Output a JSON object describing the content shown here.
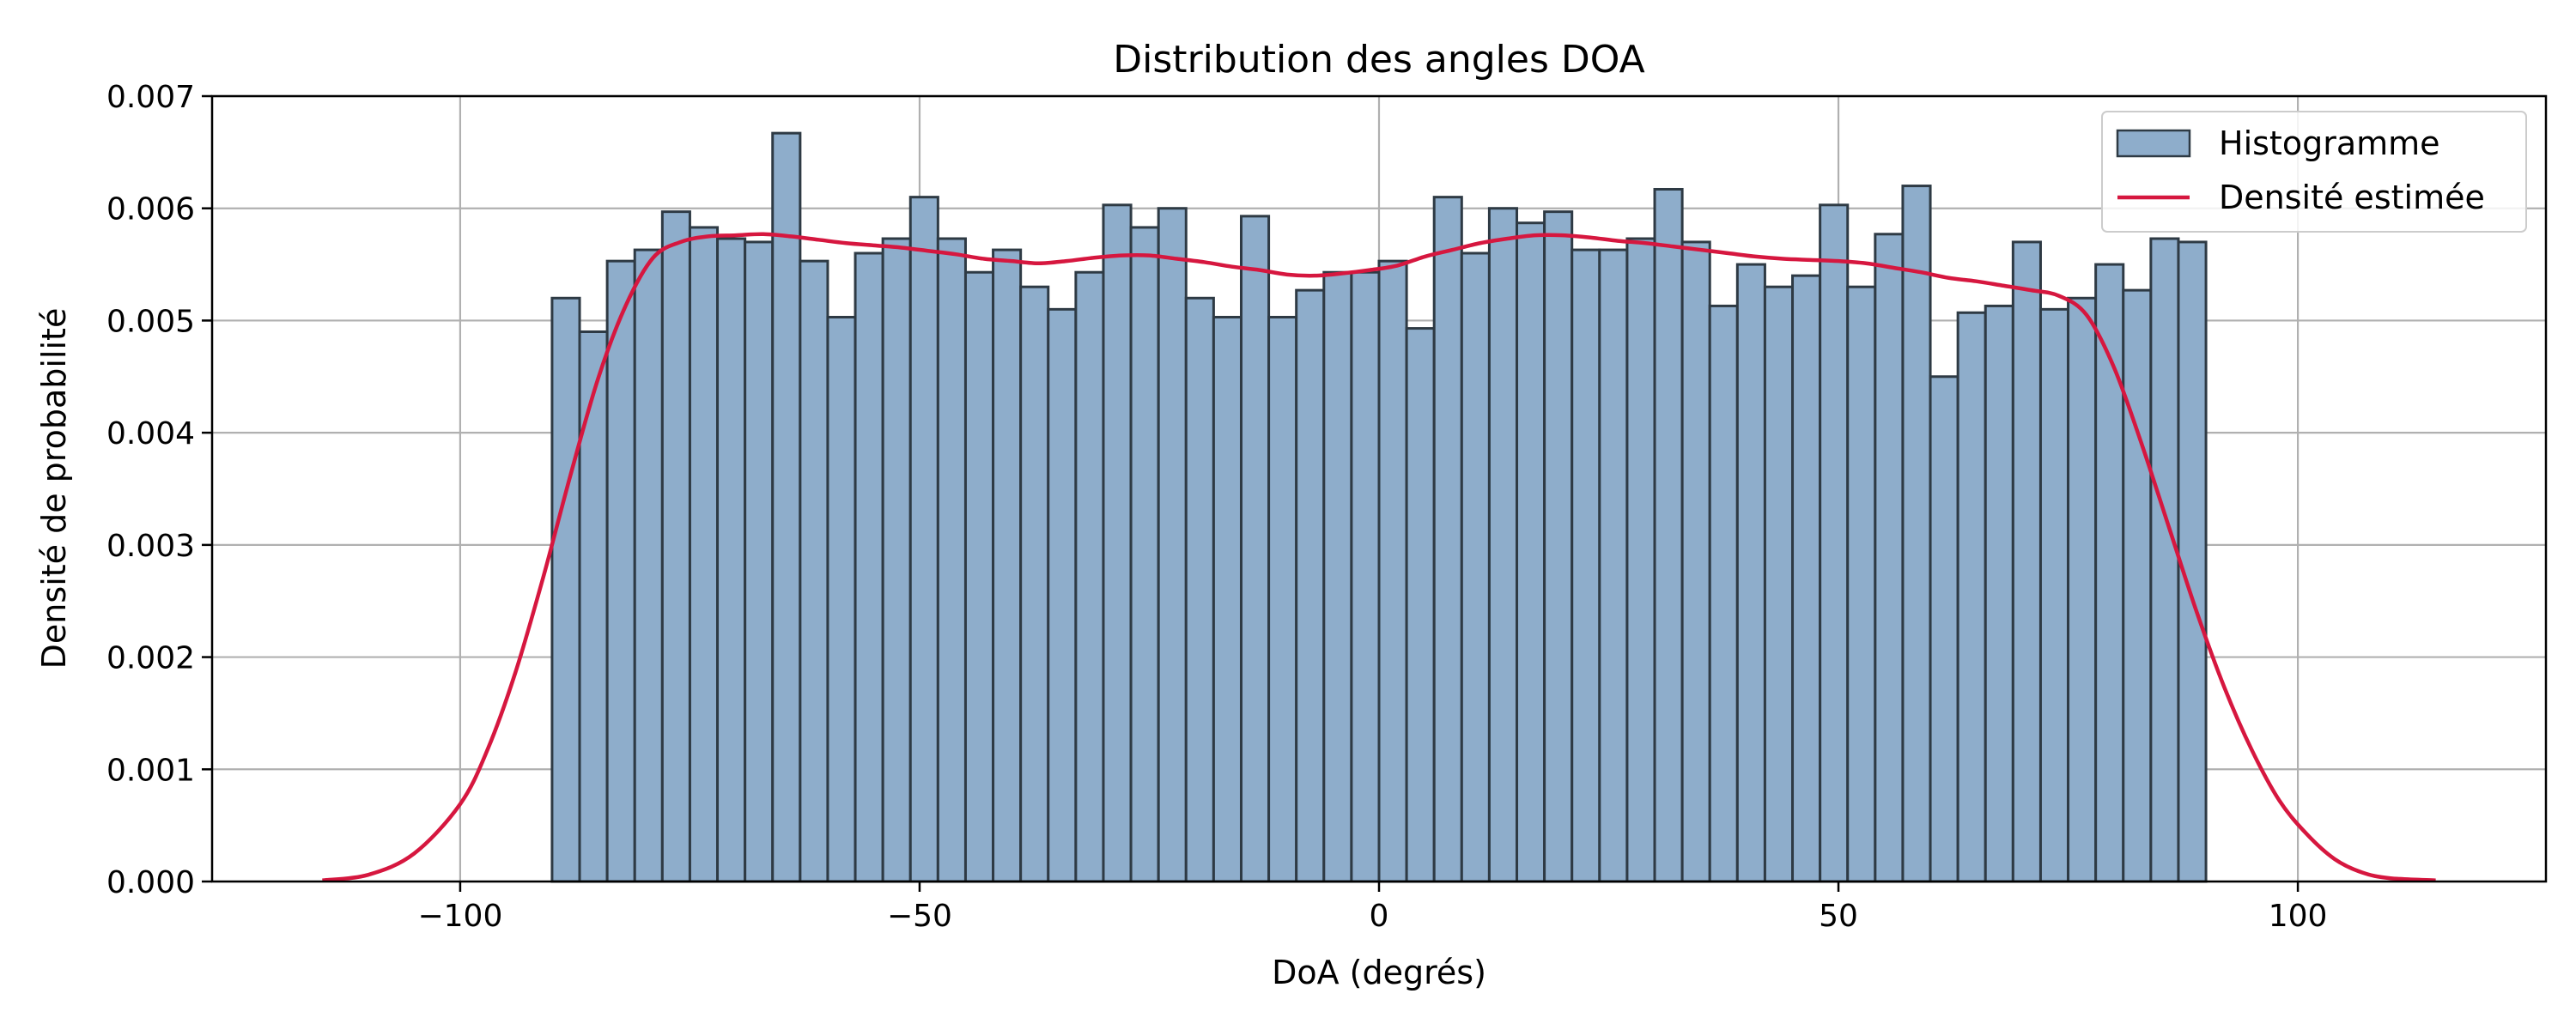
{
  "chart_data": {
    "type": "bar",
    "title": "Distribution des angles DOA",
    "xlabel": "DoA (degrés)",
    "ylabel": "Densité de probabilité",
    "xlim": [
      -127,
      127
    ],
    "ylim": [
      0,
      0.007
    ],
    "grid": true,
    "legend_position": "top-right",
    "x_ticks": [
      -100,
      -50,
      0,
      50,
      100
    ],
    "x_tick_labels": [
      "−100",
      "−50",
      "0",
      "50",
      "100"
    ],
    "y_ticks": [
      0,
      0.001,
      0.002,
      0.003,
      0.004,
      0.005,
      0.006,
      0.007
    ],
    "y_tick_labels": [
      "0.000",
      "0.001",
      "0.002",
      "0.003",
      "0.004",
      "0.005",
      "0.006",
      "0.007"
    ],
    "histogram": {
      "name": "Histogramme",
      "bin_start": -90,
      "bin_width": 3,
      "values": [
        0.0052,
        0.0049,
        0.00553,
        0.00563,
        0.00597,
        0.00583,
        0.00573,
        0.0057,
        0.00667,
        0.00553,
        0.00503,
        0.0056,
        0.00573,
        0.0061,
        0.00573,
        0.00543,
        0.00563,
        0.0053,
        0.0051,
        0.00543,
        0.00603,
        0.00583,
        0.006,
        0.0052,
        0.00503,
        0.00593,
        0.00503,
        0.00527,
        0.00543,
        0.00543,
        0.00553,
        0.00493,
        0.0061,
        0.0056,
        0.006,
        0.00587,
        0.00597,
        0.00563,
        0.00563,
        0.00573,
        0.00617,
        0.0057,
        0.00513,
        0.0055,
        0.0053,
        0.0054,
        0.00603,
        0.0053,
        0.00577,
        0.0062,
        0.0045,
        0.00507,
        0.00513,
        0.0057,
        0.0051,
        0.0052,
        0.0055,
        0.00527,
        0.00573,
        0.0057
      ],
      "fill": "#8eadcb",
      "edge": "#2e3a44"
    },
    "kde": {
      "name": "Densité estimée",
      "color": "#d6173f",
      "x": [
        -115,
        -110,
        -105,
        -100,
        -97,
        -94,
        -91,
        -88,
        -85,
        -82,
        -79,
        -76,
        -73,
        -70,
        -67,
        -64,
        -61,
        -58,
        -55,
        -52,
        -49,
        -46,
        -43,
        -40,
        -37,
        -34,
        -31,
        -28,
        -25,
        -22,
        -19,
        -16,
        -13,
        -10,
        -7,
        -4,
        -1,
        2,
        5,
        8,
        11,
        14,
        17,
        20,
        23,
        26,
        29,
        32,
        35,
        38,
        41,
        44,
        47,
        50,
        53,
        56,
        59,
        62,
        65,
        68,
        71,
        74,
        77,
        80,
        83,
        86,
        89,
        92,
        95,
        98,
        101,
        104,
        107,
        110,
        115
      ],
      "y": [
        1e-05,
        6e-05,
        0.00025,
        0.00069,
        0.00118,
        0.00186,
        0.0027,
        0.00362,
        0.00448,
        0.00513,
        0.00556,
        0.0057,
        0.00575,
        0.00576,
        0.00577,
        0.00575,
        0.00572,
        0.00569,
        0.00567,
        0.00565,
        0.00562,
        0.00559,
        0.00555,
        0.00553,
        0.00551,
        0.00553,
        0.00556,
        0.00558,
        0.00558,
        0.00555,
        0.00552,
        0.00548,
        0.00545,
        0.00541,
        0.0054,
        0.00542,
        0.00545,
        0.00549,
        0.00557,
        0.00563,
        0.00569,
        0.00573,
        0.00576,
        0.00576,
        0.00574,
        0.00571,
        0.00569,
        0.00566,
        0.00563,
        0.0056,
        0.00557,
        0.00555,
        0.00554,
        0.00553,
        0.00551,
        0.00547,
        0.00543,
        0.00538,
        0.00535,
        0.00531,
        0.00527,
        0.00522,
        0.00505,
        0.00458,
        0.0039,
        0.00315,
        0.0024,
        0.00173,
        0.00117,
        0.00072,
        0.00042,
        0.0002,
        8e-05,
        3e-05,
        1e-05
      ]
    }
  }
}
